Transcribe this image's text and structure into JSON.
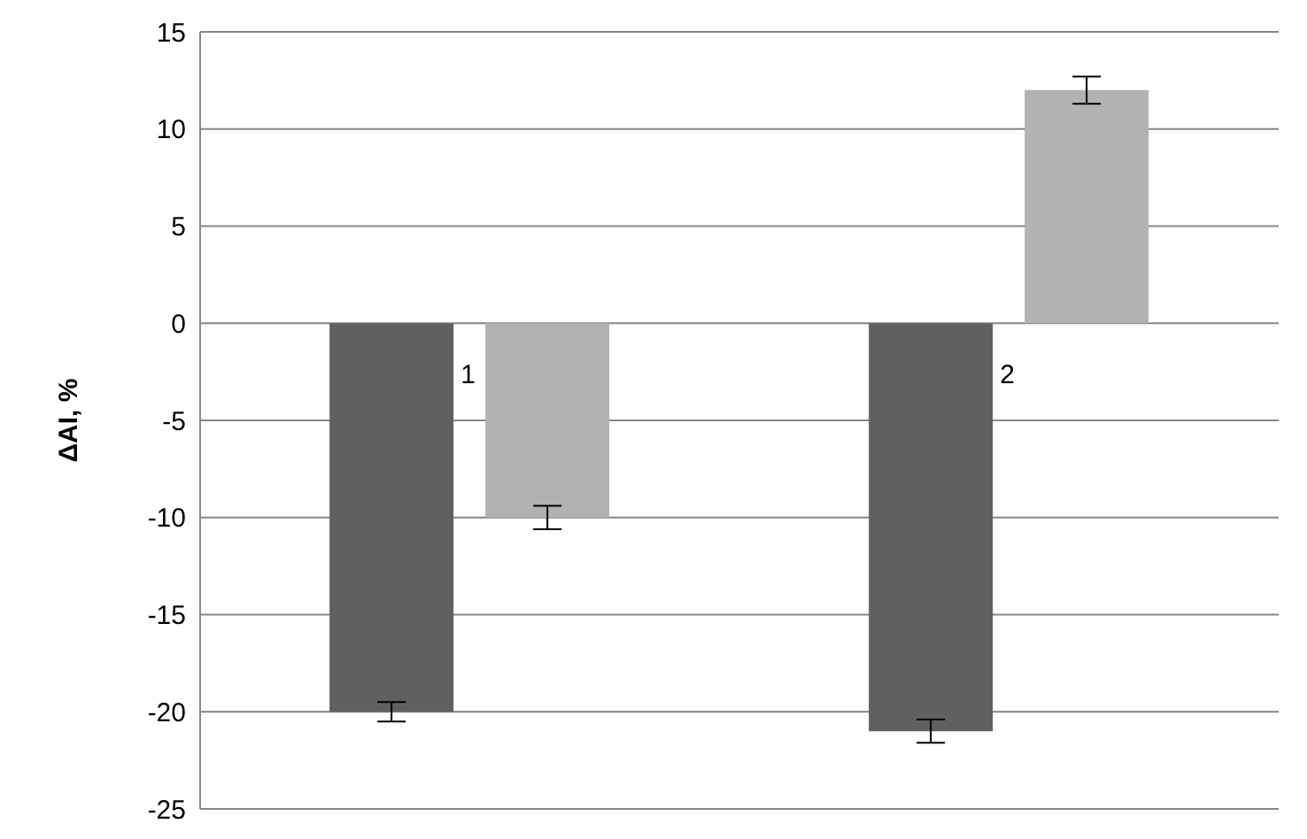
{
  "chart_data": {
    "type": "bar",
    "ylabel": "ΔAI, %",
    "categories": [
      null,
      null
    ],
    "series": [
      {
        "color": "#606060",
        "values": [
          -20,
          -21
        ],
        "errors": [
          0.5,
          0.6
        ]
      },
      {
        "color": "#b2b2b2",
        "values": [
          -10,
          12
        ],
        "errors": [
          0.6,
          0.7
        ]
      }
    ],
    "annotations": [
      "1",
      "2"
    ],
    "ylim": [
      -25,
      15
    ],
    "yticks": [
      -25,
      -20,
      -15,
      -10,
      -5,
      0,
      5,
      10,
      15
    ],
    "grid": "y",
    "legend": false
  }
}
